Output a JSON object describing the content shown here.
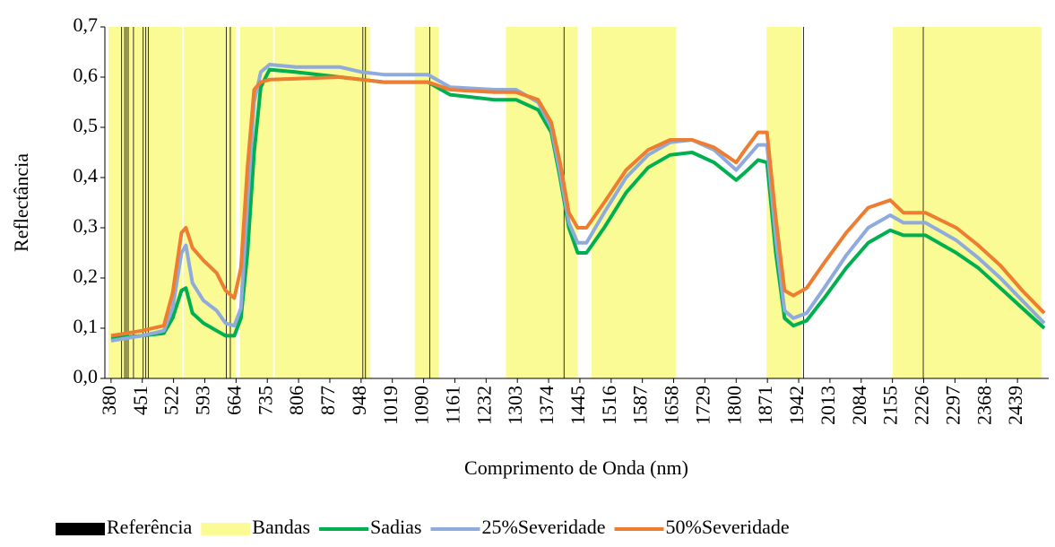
{
  "chart_data": {
    "type": "line",
    "xlabel": "Comprimento de Onda (nm)",
    "ylabel": "Reflectância",
    "xlim": [
      366,
      2510
    ],
    "ylim": [
      0,
      0.7
    ],
    "xticks": [
      380,
      451,
      522,
      593,
      664,
      735,
      806,
      877,
      948,
      1019,
      1090,
      1161,
      1232,
      1303,
      1374,
      1445,
      1516,
      1587,
      1658,
      1729,
      1800,
      1871,
      1942,
      2013,
      2084,
      2155,
      2226,
      2297,
      2368,
      2439
    ],
    "yticks": [
      {
        "value": 0,
        "label": "0,0"
      },
      {
        "value": 0.1,
        "label": "0,1"
      },
      {
        "value": 0.2,
        "label": "0,2"
      },
      {
        "value": 0.3,
        "label": "0,3"
      },
      {
        "value": 0.4,
        "label": "0,4"
      },
      {
        "value": 0.5,
        "label": "0,5"
      },
      {
        "value": 0.6,
        "label": "0,6"
      },
      {
        "value": 0.7,
        "label": "0,7"
      }
    ],
    "reference": {
      "name": "Referência",
      "color": "#000000",
      "x": [
        404,
        411,
        415,
        419,
        431,
        453,
        459,
        465,
        642,
        651,
        952,
        958,
        1104,
        1409,
        1953,
        2225
      ]
    },
    "bands": {
      "name": "Bandas",
      "color": "#fbfb96",
      "ranges": [
        [
          374,
          541
        ],
        [
          545,
          663
        ],
        [
          673,
          748
        ],
        [
          752,
          968
        ],
        [
          1070,
          1125
        ],
        [
          1277,
          1440
        ],
        [
          1471,
          1664
        ],
        [
          1869,
          1949
        ],
        [
          2156,
          2494
        ]
      ]
    },
    "x": [
      380,
      450,
      500,
      520,
      540,
      550,
      565,
      590,
      620,
      640,
      660,
      675,
      690,
      705,
      720,
      740,
      800,
      900,
      950,
      1000,
      1100,
      1150,
      1250,
      1300,
      1350,
      1380,
      1400,
      1420,
      1440,
      1460,
      1500,
      1550,
      1600,
      1650,
      1700,
      1750,
      1800,
      1820,
      1850,
      1870,
      1890,
      1910,
      1930,
      1960,
      2000,
      2050,
      2100,
      2150,
      2180,
      2230,
      2300,
      2350,
      2400,
      2450,
      2500
    ],
    "series": [
      {
        "name": "Sadias",
        "color": "#00b050",
        "values": [
          0.08,
          0.085,
          0.09,
          0.12,
          0.175,
          0.18,
          0.13,
          0.11,
          0.095,
          0.085,
          0.085,
          0.12,
          0.25,
          0.45,
          0.58,
          0.615,
          0.61,
          0.6,
          0.595,
          0.59,
          0.59,
          0.565,
          0.555,
          0.555,
          0.535,
          0.49,
          0.4,
          0.3,
          0.25,
          0.25,
          0.3,
          0.37,
          0.42,
          0.445,
          0.45,
          0.43,
          0.395,
          0.41,
          0.435,
          0.43,
          0.25,
          0.12,
          0.105,
          0.115,
          0.16,
          0.22,
          0.27,
          0.295,
          0.285,
          0.285,
          0.25,
          0.22,
          0.18,
          0.14,
          0.1
        ]
      },
      {
        "name": "25%Severidade",
        "color": "#8faadc",
        "values": [
          0.075,
          0.085,
          0.095,
          0.14,
          0.25,
          0.265,
          0.19,
          0.155,
          0.135,
          0.11,
          0.105,
          0.14,
          0.35,
          0.55,
          0.61,
          0.625,
          0.62,
          0.62,
          0.61,
          0.605,
          0.605,
          0.58,
          0.575,
          0.575,
          0.55,
          0.5,
          0.41,
          0.31,
          0.27,
          0.27,
          0.33,
          0.4,
          0.445,
          0.47,
          0.475,
          0.455,
          0.415,
          0.435,
          0.465,
          0.465,
          0.28,
          0.135,
          0.12,
          0.13,
          0.18,
          0.245,
          0.3,
          0.325,
          0.31,
          0.31,
          0.275,
          0.24,
          0.2,
          0.155,
          0.11
        ]
      },
      {
        "name": "50%Severidade",
        "color": "#ed7d31",
        "values": [
          0.085,
          0.095,
          0.105,
          0.17,
          0.29,
          0.3,
          0.26,
          0.235,
          0.21,
          0.175,
          0.16,
          0.22,
          0.42,
          0.575,
          0.59,
          0.595,
          0.597,
          0.6,
          0.595,
          0.59,
          0.59,
          0.575,
          0.57,
          0.57,
          0.555,
          0.51,
          0.43,
          0.33,
          0.3,
          0.3,
          0.35,
          0.415,
          0.455,
          0.475,
          0.475,
          0.46,
          0.43,
          0.455,
          0.49,
          0.49,
          0.32,
          0.175,
          0.165,
          0.18,
          0.23,
          0.29,
          0.34,
          0.355,
          0.33,
          0.33,
          0.3,
          0.265,
          0.225,
          0.175,
          0.13
        ]
      }
    ]
  }
}
